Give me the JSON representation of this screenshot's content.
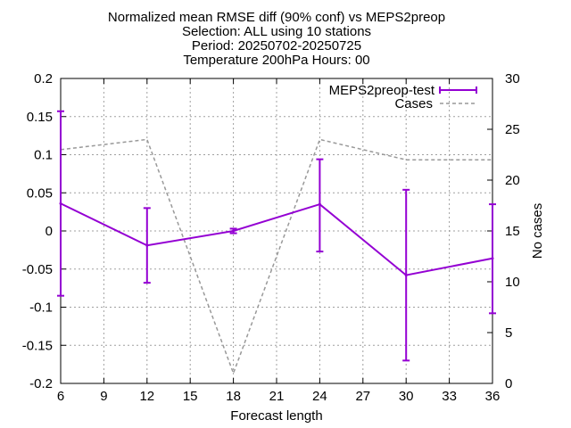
{
  "chart_data": {
    "type": "line",
    "title": [
      "Normalized mean RMSE diff (90% conf) vs MEPS2preop",
      "Selection: ALL using    10 stations",
      "Period: 20250702-20250725",
      "Temperature 200hPa   Hours: 00"
    ],
    "xlabel": "Forecast length",
    "ylabel": "",
    "y2label": "No cases",
    "xlim": [
      6,
      36
    ],
    "ylim": [
      -0.2,
      0.2
    ],
    "y2lim": [
      0,
      30
    ],
    "xticks": [
      6,
      9,
      12,
      15,
      18,
      21,
      24,
      27,
      30,
      33,
      36
    ],
    "yticks": [
      "-0.2",
      "-0.15",
      "-0.1",
      "-0.05",
      "0",
      "0.05",
      "0.1",
      "0.15",
      "0.2"
    ],
    "y2ticks": [
      0,
      5,
      10,
      15,
      20,
      25,
      30
    ],
    "grid": true,
    "legend_position": "top-right",
    "series": [
      {
        "name": "MEPS2preop-test",
        "axis": "y",
        "color": "#9400d3",
        "style": "line-errorbars",
        "x": [
          6,
          12,
          18,
          24,
          30,
          36
        ],
        "y": [
          0.036,
          -0.019,
          0.0,
          0.035,
          -0.058,
          -0.036
        ],
        "err_low": [
          -0.085,
          -0.068,
          -0.003,
          -0.027,
          -0.17,
          -0.108
        ],
        "err_high": [
          0.157,
          0.03,
          0.003,
          0.094,
          0.054,
          0.035
        ]
      },
      {
        "name": "Cases",
        "axis": "y2",
        "color": "#999999",
        "style": "dashed",
        "x": [
          6,
          12,
          18,
          24,
          30,
          36
        ],
        "y": [
          23,
          24,
          1,
          24,
          22,
          22
        ]
      }
    ]
  }
}
